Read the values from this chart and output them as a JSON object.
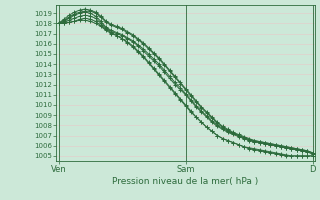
{
  "xlabel": "Pression niveau de la mer( hPa )",
  "bg_color": "#cce8d8",
  "grid_color": "#b8d8c8",
  "line_color": "#2d6b3c",
  "ylim": [
    1004.5,
    1019.8
  ],
  "yticks": [
    1005,
    1006,
    1007,
    1008,
    1009,
    1010,
    1011,
    1012,
    1013,
    1014,
    1015,
    1016,
    1017,
    1018,
    1019
  ],
  "xtick_labels": [
    "Ven",
    "Sam",
    "D"
  ],
  "xtick_positions": [
    0.0,
    0.5,
    1.0
  ],
  "n_points": 49,
  "lines": [
    [
      1018.0,
      1018.1,
      1018.3,
      1018.5,
      1018.7,
      1018.8,
      1018.7,
      1018.5,
      1018.0,
      1017.5,
      1017.2,
      1017.0,
      1016.8,
      1016.5,
      1016.2,
      1015.8,
      1015.3,
      1014.8,
      1014.3,
      1013.8,
      1013.2,
      1012.6,
      1012.0,
      1011.5,
      1011.0,
      1010.4,
      1009.8,
      1009.3,
      1008.8,
      1008.3,
      1007.9,
      1007.6,
      1007.3,
      1007.1,
      1006.9,
      1006.7,
      1006.5,
      1006.4,
      1006.3,
      1006.2,
      1006.1,
      1006.0,
      1005.9,
      1005.8,
      1005.7,
      1005.6,
      1005.5,
      1005.4,
      1005.2
    ],
    [
      1018.0,
      1018.2,
      1018.5,
      1018.8,
      1019.0,
      1019.1,
      1019.0,
      1018.7,
      1018.2,
      1017.6,
      1017.3,
      1017.1,
      1016.9,
      1016.6,
      1016.3,
      1015.9,
      1015.5,
      1015.0,
      1014.5,
      1014.0,
      1013.4,
      1012.8,
      1012.2,
      1011.7,
      1011.1,
      1010.5,
      1009.9,
      1009.4,
      1008.9,
      1008.4,
      1008.0,
      1007.7,
      1007.4,
      1007.2,
      1007.0,
      1006.8,
      1006.6,
      1006.5,
      1006.4,
      1006.3,
      1006.2,
      1006.1,
      1006.0,
      1005.9,
      1005.8,
      1005.7,
      1005.6,
      1005.5,
      1005.3
    ],
    [
      1018.0,
      1018.0,
      1018.1,
      1018.2,
      1018.3,
      1018.3,
      1018.2,
      1018.0,
      1017.7,
      1017.3,
      1017.0,
      1016.8,
      1016.5,
      1016.2,
      1015.8,
      1015.3,
      1014.8,
      1014.2,
      1013.6,
      1013.0,
      1012.4,
      1011.8,
      1011.2,
      1010.6,
      1010.0,
      1009.4,
      1008.8,
      1008.3,
      1007.8,
      1007.4,
      1007.0,
      1006.7,
      1006.5,
      1006.3,
      1006.1,
      1005.9,
      1005.7,
      1005.6,
      1005.5,
      1005.4,
      1005.3,
      1005.2,
      1005.1,
      1005.0,
      1005.0,
      1005.0,
      1005.0,
      1005.0,
      1005.0
    ],
    [
      1018.0,
      1018.3,
      1018.6,
      1018.9,
      1019.1,
      1019.2,
      1019.2,
      1019.0,
      1018.6,
      1018.1,
      1017.8,
      1017.6,
      1017.4,
      1017.1,
      1016.8,
      1016.4,
      1016.0,
      1015.5,
      1015.0,
      1014.5,
      1013.9,
      1013.3,
      1012.7,
      1012.1,
      1011.5,
      1010.9,
      1010.3,
      1009.7,
      1009.2,
      1008.7,
      1008.2,
      1007.8,
      1007.5,
      1007.2,
      1007.0,
      1006.8,
      1006.6,
      1006.4,
      1006.3,
      1006.2,
      1006.1,
      1006.0,
      1005.9,
      1005.8,
      1005.7,
      1005.6,
      1005.5,
      1005.4,
      1005.2
    ],
    [
      1018.0,
      1018.0,
      1018.1,
      1018.2,
      1018.4,
      1018.5,
      1018.4,
      1018.2,
      1017.8,
      1017.4,
      1017.1,
      1016.8,
      1016.5,
      1016.1,
      1015.7,
      1015.2,
      1014.7,
      1014.1,
      1013.5,
      1012.9,
      1012.3,
      1011.7,
      1011.1,
      1010.5,
      1009.9,
      1009.3,
      1008.8,
      1008.3,
      1007.8,
      1007.4,
      1007.0,
      1006.7,
      1006.5,
      1006.3,
      1006.1,
      1005.9,
      1005.8,
      1005.7,
      1005.6,
      1005.5,
      1005.4,
      1005.3,
      1005.2,
      1005.1,
      1005.0,
      1005.0,
      1005.0,
      1005.0,
      1005.0
    ],
    [
      1018.0,
      1018.4,
      1018.8,
      1019.1,
      1019.3,
      1019.4,
      1019.3,
      1019.1,
      1018.7,
      1018.2,
      1017.9,
      1017.7,
      1017.5,
      1017.2,
      1016.9,
      1016.5,
      1016.1,
      1015.6,
      1015.1,
      1014.6,
      1014.0,
      1013.4,
      1012.8,
      1012.2,
      1011.6,
      1011.0,
      1010.4,
      1009.8,
      1009.3,
      1008.8,
      1008.3,
      1007.9,
      1007.6,
      1007.3,
      1007.1,
      1006.9,
      1006.7,
      1006.5,
      1006.4,
      1006.3,
      1006.2,
      1006.1,
      1006.0,
      1005.9,
      1005.8,
      1005.7,
      1005.6,
      1005.5,
      1005.3
    ]
  ]
}
